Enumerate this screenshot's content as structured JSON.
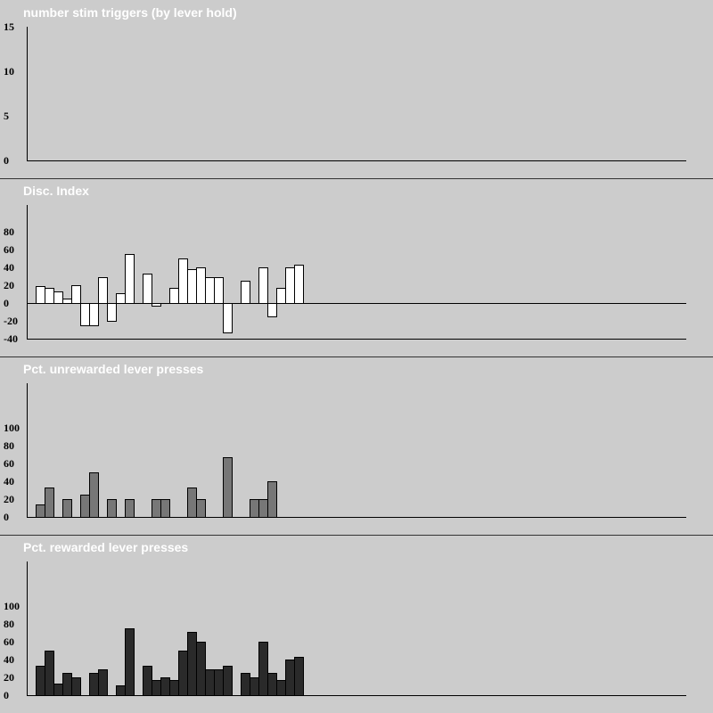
{
  "colors": {
    "background": "#cccccc",
    "title_text": "#ffffff",
    "axis": "#000000",
    "separator": "#333333"
  },
  "chart_data": [
    {
      "type": "bar",
      "title": "number stim triggers (by lever hold)",
      "xlabel": "",
      "ylabel": "",
      "ylim": [
        0,
        15
      ],
      "yticks": [
        0,
        5,
        10,
        15
      ],
      "y_zero_line": false,
      "bar_fill": "#ffffff",
      "values": []
    },
    {
      "type": "bar",
      "title": "Disc. Index",
      "xlabel": "",
      "ylabel": "",
      "ylim": [
        -40,
        110
      ],
      "yticks": [
        -40,
        -20,
        0,
        20,
        40,
        60,
        80
      ],
      "y_zero_line": true,
      "bar_fill": "#ffffff",
      "values": [
        19,
        17,
        13,
        5,
        20,
        -25,
        -25,
        29,
        -20,
        11,
        55,
        null,
        33,
        -3,
        null,
        17,
        50,
        38,
        40,
        29,
        29,
        -33,
        null,
        25,
        null,
        40,
        -15,
        17,
        40,
        43
      ]
    },
    {
      "type": "bar",
      "title": "Pct. unrewarded lever presses",
      "xlabel": "",
      "ylabel": "",
      "ylim": [
        0,
        150
      ],
      "yticks": [
        0,
        20,
        40,
        60,
        80,
        100
      ],
      "y_zero_line": false,
      "bar_fill": "#777777",
      "values": [
        14,
        33,
        null,
        20,
        null,
        25,
        50,
        null,
        20,
        null,
        20,
        null,
        null,
        20,
        20,
        null,
        null,
        33,
        20,
        null,
        null,
        67,
        null,
        null,
        20,
        20,
        40,
        null,
        null,
        null
      ]
    },
    {
      "type": "bar",
      "title": "Pct. rewarded lever presses",
      "xlabel": "",
      "ylabel": "",
      "ylim": [
        0,
        150
      ],
      "yticks": [
        0,
        20,
        40,
        60,
        80,
        100
      ],
      "y_zero_line": false,
      "bar_fill": "#2a2a2a",
      "values": [
        33,
        50,
        13,
        25,
        20,
        null,
        25,
        29,
        null,
        11,
        75,
        null,
        33,
        17,
        20,
        17,
        50,
        71,
        60,
        29,
        29,
        33,
        null,
        25,
        20,
        60,
        25,
        17,
        40,
        43
      ]
    }
  ]
}
